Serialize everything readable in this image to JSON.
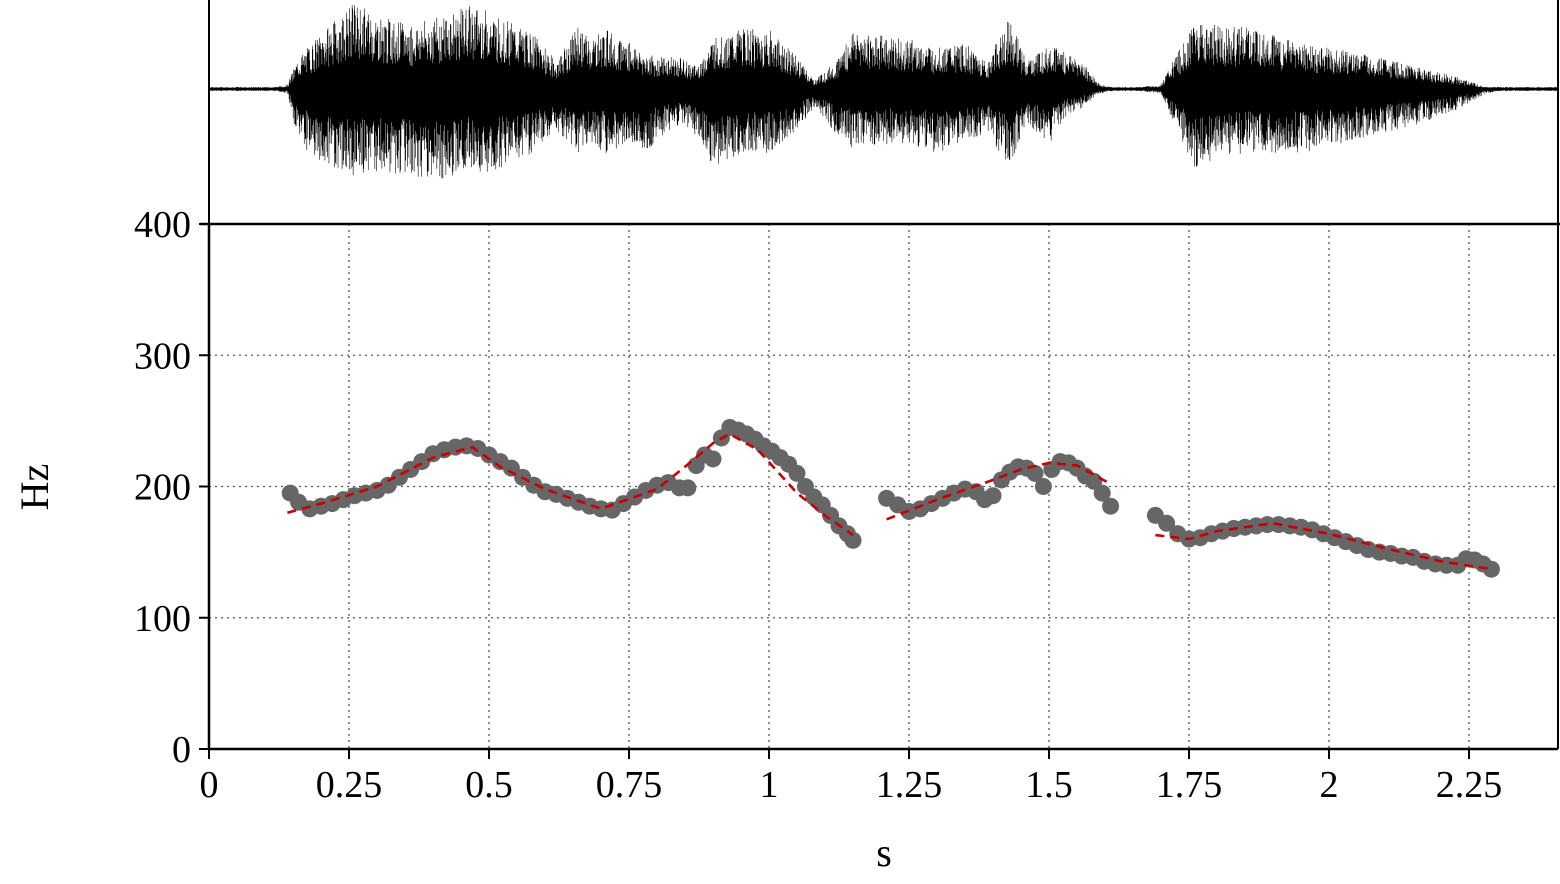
{
  "chart_data": [
    {
      "type": "area",
      "panel": "waveform",
      "title": "",
      "xlabel": "",
      "ylabel": "",
      "xlim": [
        0,
        2.41
      ],
      "envelope": {
        "x": [
          0.1,
          0.14,
          0.16,
          0.2,
          0.26,
          0.3,
          0.36,
          0.42,
          0.47,
          0.5,
          0.53,
          0.58,
          0.62,
          0.66,
          0.68,
          0.71,
          0.74,
          0.78,
          0.8,
          0.84,
          0.87,
          0.9,
          0.95,
          1.0,
          1.05,
          1.08,
          1.12,
          1.15,
          1.2,
          1.25,
          1.3,
          1.35,
          1.39,
          1.43,
          1.46,
          1.5,
          1.53,
          1.56,
          1.59,
          1.63,
          1.7,
          1.76,
          1.8,
          1.85,
          1.95,
          2.05,
          2.15,
          2.22,
          2.28,
          2.32
        ],
        "upper": [
          0.0,
          0.05,
          0.35,
          0.6,
          0.95,
          0.8,
          0.7,
          0.8,
          0.92,
          0.85,
          0.75,
          0.6,
          0.3,
          0.7,
          0.55,
          0.65,
          0.55,
          0.4,
          0.35,
          0.35,
          0.25,
          0.55,
          0.65,
          0.65,
          0.35,
          0.1,
          0.3,
          0.65,
          0.6,
          0.55,
          0.45,
          0.5,
          0.3,
          0.8,
          0.3,
          0.5,
          0.4,
          0.3,
          0.05,
          0.0,
          0.05,
          0.75,
          0.7,
          0.68,
          0.5,
          0.4,
          0.25,
          0.15,
          0.02,
          0.0
        ],
        "lower": [
          0.0,
          -0.05,
          -0.6,
          -0.8,
          -0.95,
          -0.9,
          -0.95,
          -1.0,
          -0.85,
          -1.0,
          -0.8,
          -0.7,
          -0.45,
          -0.7,
          -0.6,
          -0.7,
          -0.65,
          -0.7,
          -0.55,
          -0.4,
          -0.5,
          -0.85,
          -0.7,
          -0.7,
          -0.45,
          -0.2,
          -0.5,
          -0.65,
          -0.6,
          -0.6,
          -0.7,
          -0.55,
          -0.5,
          -0.85,
          -0.4,
          -0.6,
          -0.3,
          -0.2,
          -0.05,
          0.0,
          -0.05,
          -0.9,
          -0.75,
          -0.7,
          -0.7,
          -0.55,
          -0.4,
          -0.25,
          -0.05,
          0.0
        ]
      },
      "color": "#000000"
    },
    {
      "type": "scatter",
      "panel": "pitch",
      "title": "",
      "xlabel": "s",
      "ylabel": "Hz",
      "xlim": [
        0,
        2.41
      ],
      "ylim": [
        0,
        400
      ],
      "grid": true,
      "xticks": [
        0,
        0.25,
        0.5,
        0.75,
        1,
        1.25,
        1.5,
        1.75,
        2,
        2.25
      ],
      "xtick_labels": [
        "0",
        "0.25",
        "0.5",
        "0.75",
        "1",
        "1.25",
        "1.5",
        "1.75",
        "2",
        "2.25"
      ],
      "yticks": [
        0,
        100,
        200,
        300,
        400
      ],
      "ytick_labels": [
        "0",
        "100",
        "200",
        "300",
        "400"
      ],
      "series": [
        {
          "kind": "points",
          "color": "#666666",
          "segments": [
            [
              [
                0.145,
                195
              ],
              [
                0.16,
                188
              ],
              [
                0.18,
                183
              ],
              [
                0.2,
                185
              ],
              [
                0.22,
                187
              ],
              [
                0.24,
                190
              ],
              [
                0.26,
                193
              ],
              [
                0.28,
                195
              ],
              [
                0.3,
                197
              ],
              [
                0.32,
                201
              ],
              [
                0.34,
                207
              ],
              [
                0.36,
                213
              ],
              [
                0.38,
                219
              ],
              [
                0.4,
                225
              ],
              [
                0.42,
                228
              ],
              [
                0.44,
                230
              ],
              [
                0.46,
                231
              ],
              [
                0.48,
                229
              ],
              [
                0.5,
                224
              ],
              [
                0.52,
                219
              ],
              [
                0.54,
                214
              ],
              [
                0.56,
                207
              ],
              [
                0.58,
                201
              ],
              [
                0.6,
                196
              ],
              [
                0.62,
                194
              ],
              [
                0.64,
                191
              ],
              [
                0.66,
                188
              ],
              [
                0.68,
                185
              ],
              [
                0.7,
                183
              ],
              [
                0.72,
                182
              ],
              [
                0.74,
                187
              ],
              [
                0.76,
                192
              ],
              [
                0.78,
                197
              ],
              [
                0.8,
                201
              ],
              [
                0.82,
                203
              ],
              [
                0.84,
                199
              ],
              [
                0.855,
                199
              ],
              [
                0.87,
                216
              ],
              [
                0.885,
                224
              ],
              [
                0.9,
                221
              ],
              [
                0.915,
                237
              ],
              [
                0.93,
                245
              ],
              [
                0.945,
                243
              ],
              [
                0.96,
                240
              ],
              [
                0.975,
                236
              ],
              [
                0.99,
                231
              ],
              [
                1.005,
                227
              ],
              [
                1.02,
                222
              ],
              [
                1.035,
                217
              ],
              [
                1.05,
                210
              ],
              [
                1.065,
                200
              ],
              [
                1.08,
                192
              ],
              [
                1.095,
                186
              ],
              [
                1.11,
                178
              ],
              [
                1.125,
                170
              ],
              [
                1.14,
                164
              ],
              [
                1.15,
                159
              ]
            ],
            [
              [
                1.21,
                191
              ],
              [
                1.23,
                186
              ],
              [
                1.25,
                181
              ],
              [
                1.27,
                183
              ],
              [
                1.29,
                187
              ],
              [
                1.31,
                191
              ],
              [
                1.33,
                195
              ],
              [
                1.35,
                198
              ],
              [
                1.37,
                196
              ],
              [
                1.385,
                190
              ],
              [
                1.4,
                193
              ],
              [
                1.415,
                205
              ],
              [
                1.43,
                211
              ],
              [
                1.445,
                215
              ],
              [
                1.46,
                214
              ],
              [
                1.475,
                210
              ],
              [
                1.49,
                200
              ],
              [
                1.505,
                213
              ],
              [
                1.52,
                219
              ],
              [
                1.535,
                218
              ],
              [
                1.55,
                214
              ],
              [
                1.565,
                208
              ],
              [
                1.58,
                204
              ],
              [
                1.595,
                195
              ],
              [
                1.61,
                185
              ]
            ],
            [
              [
                1.69,
                178
              ],
              [
                1.71,
                172
              ],
              [
                1.73,
                164
              ],
              [
                1.75,
                160
              ],
              [
                1.77,
                161
              ],
              [
                1.79,
                164
              ],
              [
                1.81,
                166
              ],
              [
                1.83,
                168
              ],
              [
                1.85,
                169
              ],
              [
                1.87,
                170
              ],
              [
                1.89,
                171
              ],
              [
                1.91,
                171
              ],
              [
                1.93,
                170
              ],
              [
                1.95,
                169
              ],
              [
                1.97,
                167
              ],
              [
                1.99,
                164
              ],
              [
                2.01,
                161
              ],
              [
                2.03,
                158
              ],
              [
                2.05,
                155
              ],
              [
                2.07,
                152
              ],
              [
                2.09,
                150
              ],
              [
                2.11,
                149
              ],
              [
                2.13,
                147
              ],
              [
                2.15,
                146
              ],
              [
                2.17,
                143
              ],
              [
                2.19,
                141
              ],
              [
                2.21,
                140
              ],
              [
                2.23,
                140
              ],
              [
                2.245,
                145
              ],
              [
                2.26,
                144
              ],
              [
                2.275,
                141
              ],
              [
                2.29,
                137
              ]
            ]
          ]
        },
        {
          "kind": "dashed-line",
          "color": "#cc0000",
          "segments": [
            [
              [
                0.14,
                180
              ],
              [
                0.2,
                187
              ],
              [
                0.3,
                200
              ],
              [
                0.4,
                222
              ],
              [
                0.47,
                230
              ],
              [
                0.52,
                215
              ],
              [
                0.6,
                198
              ],
              [
                0.7,
                183
              ],
              [
                0.8,
                198
              ],
              [
                0.85,
                215
              ],
              [
                0.9,
                233
              ],
              [
                0.93,
                240
              ],
              [
                0.98,
                228
              ],
              [
                1.05,
                195
              ],
              [
                1.1,
                178
              ],
              [
                1.15,
                163
              ]
            ],
            [
              [
                1.21,
                175
              ],
              [
                1.3,
                190
              ],
              [
                1.4,
                205
              ],
              [
                1.45,
                213
              ],
              [
                1.5,
                218
              ],
              [
                1.55,
                216
              ],
              [
                1.61,
                202
              ]
            ],
            [
              [
                1.69,
                163
              ],
              [
                1.75,
                160
              ],
              [
                1.8,
                166
              ],
              [
                1.9,
                172
              ],
              [
                2.0,
                164
              ],
              [
                2.1,
                153
              ],
              [
                2.2,
                143
              ],
              [
                2.29,
                137
              ]
            ]
          ]
        }
      ]
    }
  ]
}
